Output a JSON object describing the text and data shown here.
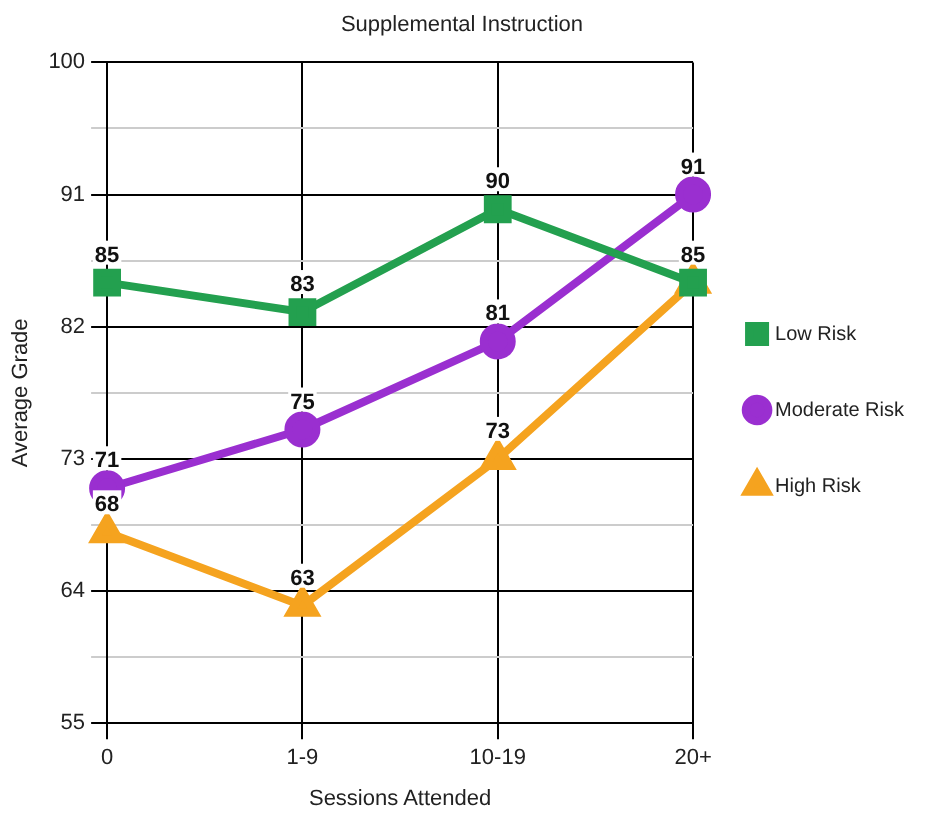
{
  "chart_data": {
    "type": "line",
    "title": "Supplemental Instruction",
    "xlabel": "Sessions Attended",
    "ylabel": "Average Grade",
    "categories": [
      "0",
      "1-9",
      "10-19",
      "20+"
    ],
    "series": [
      {
        "name": "Low Risk",
        "color": "#23a04f",
        "marker": "square",
        "values": [
          85,
          83,
          90,
          85
        ],
        "value_labels": [
          "85",
          "83",
          "90",
          "85"
        ]
      },
      {
        "name": "Moderate Risk",
        "color": "#9a2fd0",
        "marker": "circle",
        "values": [
          71,
          75,
          81,
          91
        ],
        "value_labels": [
          "71",
          "75",
          "81",
          "91"
        ]
      },
      {
        "name": "High Risk",
        "color": "#f5a31f",
        "marker": "triangle",
        "values": [
          68,
          63,
          73,
          85
        ],
        "value_labels": [
          "68",
          "63",
          "73",
          null
        ]
      }
    ],
    "ylim": [
      55,
      100
    ],
    "yticks": [
      55,
      {
        "value": 59.5,
        "label": null
      },
      64,
      {
        "value": 68.5,
        "label": null
      },
      73,
      {
        "value": 77.5,
        "label": null
      },
      82,
      {
        "value": 86.5,
        "label": null
      },
      91,
      {
        "value": 95.5,
        "label": null
      },
      100
    ],
    "grid": true,
    "legend": "right",
    "line_style": "solid"
  }
}
